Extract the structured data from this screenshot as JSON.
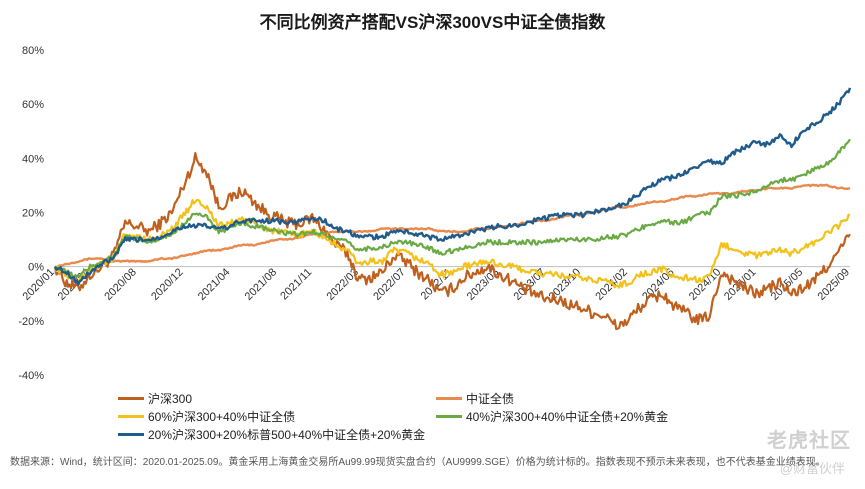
{
  "title": "不同比例资产搭配VS沪深300VS中证全债指数",
  "footer": {
    "note": "数据来源：Wind，统计区间：2020.01-2025.09。黄金采用上海黄金交易所Au99.99现货实盘合约（AU9999.SGE）价格为统计标的。指数表现不预示未来表现，也不代表基金业绩表现。"
  },
  "watermark": "老虎社区",
  "watermark_sub": "@财富伙伴",
  "chart_data": {
    "type": "line",
    "title": "不同比例资产搭配VS沪深300VS中证全债指数",
    "xlabel": "",
    "ylabel": "",
    "ylim": [
      -40,
      80
    ],
    "yticks": [
      -40,
      -20,
      0,
      20,
      40,
      60,
      80
    ],
    "ytick_format": "percent",
    "grid": false,
    "legend_position": "bottom",
    "x_tick_labels": [
      "2020/01",
      "2020/04",
      "2020/08",
      "2020/12",
      "2021/04",
      "2021/08",
      "2021/11",
      "2022/03",
      "2022/07",
      "2022/11",
      "2023/03",
      "2023/07",
      "2023/10",
      "2024/02",
      "2024/06",
      "2024/10",
      "2025/01",
      "2025/05",
      "2025/09"
    ],
    "x": [
      "2020/01",
      "2020/02",
      "2020/03",
      "2020/04",
      "2020/05",
      "2020/06",
      "2020/07",
      "2020/08",
      "2020/09",
      "2020/10",
      "2020/11",
      "2020/12",
      "2021/01",
      "2021/02",
      "2021/03",
      "2021/04",
      "2021/05",
      "2021/06",
      "2021/07",
      "2021/08",
      "2021/09",
      "2021/10",
      "2021/11",
      "2021/12",
      "2022/01",
      "2022/02",
      "2022/03",
      "2022/04",
      "2022/05",
      "2022/06",
      "2022/07",
      "2022/08",
      "2022/09",
      "2022/10",
      "2022/11",
      "2022/12",
      "2023/01",
      "2023/02",
      "2023/03",
      "2023/04",
      "2023/05",
      "2023/06",
      "2023/07",
      "2023/08",
      "2023/09",
      "2023/10",
      "2023/11",
      "2023/12",
      "2024/01",
      "2024/02",
      "2024/03",
      "2024/04",
      "2024/05",
      "2024/06",
      "2024/07",
      "2024/08",
      "2024/09",
      "2024/10",
      "2024/11",
      "2024/12",
      "2025/01",
      "2025/02",
      "2025/03",
      "2025/04",
      "2025/05",
      "2025/06",
      "2025/07",
      "2025/08",
      "2025/09"
    ],
    "series": [
      {
        "name": "沪深300",
        "color": "#c0601e",
        "width": 2.2,
        "values": [
          0,
          -6,
          -8,
          -3,
          0,
          4,
          16,
          15,
          13,
          16,
          20,
          30,
          40,
          35,
          22,
          25,
          28,
          24,
          20,
          18,
          16,
          16,
          18,
          14,
          8,
          5,
          -5,
          -4,
          -2,
          4,
          2,
          -2,
          -5,
          -10,
          -8,
          -4,
          -2,
          0,
          -3,
          -5,
          -8,
          -10,
          -12,
          -12,
          -14,
          -15,
          -17,
          -18,
          -22,
          -20,
          -15,
          -12,
          -10,
          -15,
          -17,
          -20,
          -18,
          -2,
          -5,
          -8,
          -10,
          -8,
          -6,
          -10,
          -8,
          -5,
          0,
          5,
          12
        ]
      },
      {
        "name": "中证全债",
        "color": "#e88a4d",
        "width": 2.4,
        "values": [
          0,
          1,
          2,
          3,
          3,
          2,
          2,
          2,
          2,
          3,
          3,
          4,
          5,
          6,
          6,
          7,
          8,
          8,
          9,
          10,
          10,
          11,
          12,
          12,
          13,
          13,
          13,
          13,
          14,
          14,
          14,
          14,
          14,
          13,
          13,
          13,
          14,
          14,
          15,
          15,
          16,
          17,
          17,
          18,
          19,
          19,
          20,
          21,
          22,
          22,
          23,
          24,
          24,
          25,
          26,
          26,
          27,
          27,
          27,
          28,
          28,
          29,
          29,
          29,
          30,
          30,
          30,
          29,
          29
        ]
      },
      {
        "name": "60%沪深300+40%中证全债",
        "color": "#f2c21a",
        "width": 2.2,
        "values": [
          0,
          -3,
          -5,
          -1,
          1,
          3,
          12,
          11,
          10,
          11,
          14,
          19,
          25,
          22,
          15,
          16,
          18,
          16,
          14,
          13,
          12,
          12,
          13,
          11,
          8,
          6,
          1,
          2,
          2,
          6,
          5,
          3,
          1,
          -3,
          -2,
          0,
          1,
          2,
          1,
          0,
          -1,
          -2,
          -3,
          -3,
          -4,
          -4,
          -5,
          -5,
          -7,
          -6,
          -3,
          -2,
          -1,
          -4,
          -4,
          -5,
          -4,
          8,
          7,
          5,
          4,
          5,
          6,
          5,
          7,
          9,
          12,
          15,
          19
        ]
      },
      {
        "name": "40%沪深300+40%中证全债+20%黄金",
        "color": "#6aaa44",
        "width": 2.2,
        "values": [
          0,
          -2,
          -4,
          0,
          2,
          4,
          11,
          10,
          9,
          10,
          12,
          16,
          20,
          18,
          13,
          14,
          16,
          15,
          14,
          13,
          12,
          12,
          13,
          12,
          10,
          9,
          6,
          7,
          7,
          9,
          9,
          8,
          7,
          5,
          6,
          7,
          8,
          9,
          9,
          9,
          9,
          9,
          9,
          10,
          10,
          10,
          10,
          11,
          11,
          12,
          14,
          16,
          17,
          16,
          17,
          19,
          20,
          26,
          26,
          27,
          28,
          30,
          32,
          32,
          34,
          36,
          38,
          42,
          47
        ]
      },
      {
        "name": "20%沪深300+20%标普500+40%中证全债+20%黄金",
        "color": "#1f5c8c",
        "width": 2.4,
        "values": [
          0,
          -2,
          -6,
          -2,
          1,
          3,
          10,
          10,
          10,
          11,
          13,
          15,
          15,
          15,
          14,
          15,
          17,
          17,
          17,
          17,
          16,
          17,
          18,
          17,
          14,
          13,
          11,
          11,
          11,
          13,
          13,
          12,
          11,
          10,
          11,
          12,
          13,
          14,
          15,
          15,
          16,
          17,
          18,
          19,
          19,
          19,
          20,
          21,
          22,
          24,
          27,
          30,
          32,
          33,
          35,
          37,
          39,
          38,
          42,
          44,
          46,
          45,
          48,
          45,
          50,
          53,
          56,
          60,
          66
        ]
      }
    ]
  }
}
